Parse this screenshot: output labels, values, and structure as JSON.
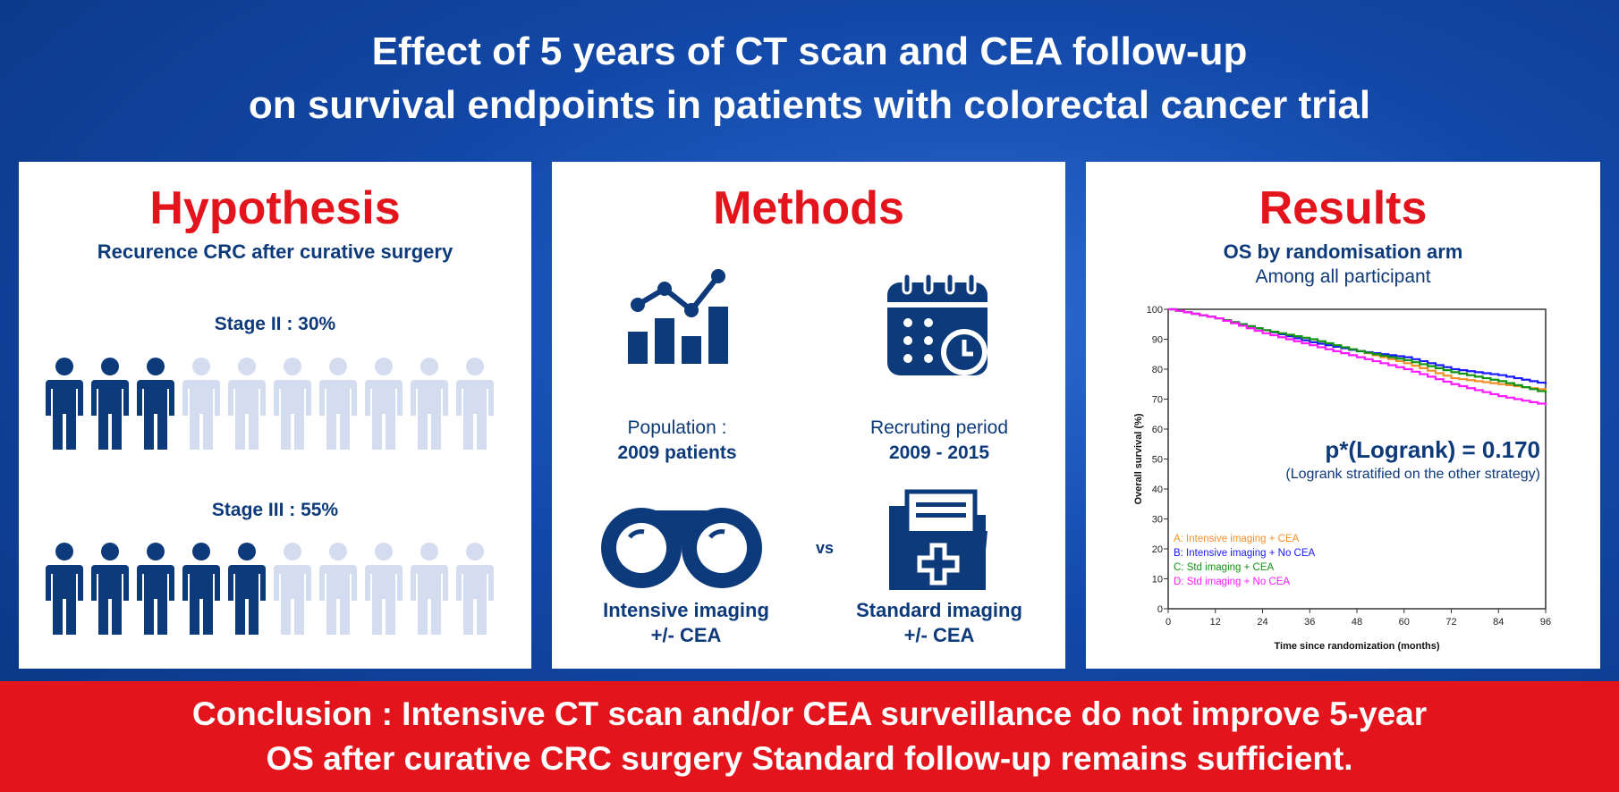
{
  "title": {
    "line1": "Effect of 5 years of CT scan and CEA follow-up",
    "line2": "on survival endpoints in patients with colorectal cancer trial"
  },
  "hypothesis": {
    "heading": "Hypothesis",
    "subtitle": "Recurence CRC after curative surgery",
    "stages": [
      {
        "label": "Stage II : 30%",
        "filled_icons": 3,
        "total_icons": 10
      },
      {
        "label": "Stage III : 55%",
        "filled_icons": 5,
        "total_icons": 10
      }
    ],
    "colors": {
      "filled": "#0d3a7a",
      "empty": "#d3ddef"
    }
  },
  "methods": {
    "heading": "Methods",
    "population": {
      "label": "Population :",
      "value": "2009 patients",
      "icon": "bar-line-chart-icon"
    },
    "recruiting": {
      "label": "Recruting period",
      "value": "2009 - 2015",
      "icon": "calendar-clock-icon"
    },
    "arm1": {
      "label": "Intensive imaging",
      "value": "+/- CEA",
      "icon": "binoculars-icon"
    },
    "vs": "vs",
    "arm2": {
      "label": "Standard imaging",
      "value": "+/- CEA",
      "icon": "medical-folder-icon"
    }
  },
  "results": {
    "heading": "Results",
    "subtitle": "OS by randomisation arm",
    "subtitle2": "Among all participant",
    "pvalue": "p*(Logrank) = 0.170",
    "pnote": "(Logrank stratified on the other strategy)"
  },
  "chart_data": {
    "type": "line",
    "xlabel": "Time since randomization (months)",
    "ylabel": "Overall survival (%)",
    "xlim": [
      0,
      96
    ],
    "ylim": [
      0,
      100
    ],
    "xticks": [
      0,
      12,
      24,
      36,
      48,
      60,
      72,
      84,
      96
    ],
    "yticks": [
      0,
      10,
      20,
      30,
      40,
      50,
      60,
      70,
      80,
      90,
      100
    ],
    "x": [
      0,
      12,
      24,
      36,
      48,
      60,
      72,
      84,
      96
    ],
    "series": [
      {
        "name": "A: Intensive imaging  + CEA",
        "color": "#f0902a",
        "values": [
          100,
          97,
          93,
          89,
          86,
          82,
          77,
          75,
          73
        ]
      },
      {
        "name": "B: Intensive imaging  + No CEA",
        "color": "#1a1aff",
        "values": [
          100,
          97,
          93,
          89,
          86,
          84,
          80,
          78,
          75
        ]
      },
      {
        "name": "C: Std imaging + CEA",
        "color": "#129412",
        "values": [
          100,
          97,
          93,
          90,
          86,
          83,
          79,
          76,
          72
        ]
      },
      {
        "name": "D: Std imaging + No CEA",
        "color": "#ff1aff",
        "values": [
          100,
          97,
          92,
          88,
          84,
          80,
          75,
          71,
          68
        ]
      }
    ],
    "legend": "bottom-left",
    "grid": false
  },
  "conclusion": {
    "line1": "Conclusion : Intensive CT scan and/or CEA surveillance do not improve 5-year",
    "line2": "OS after curative CRC surgery Standard follow-up remains sufficient."
  }
}
